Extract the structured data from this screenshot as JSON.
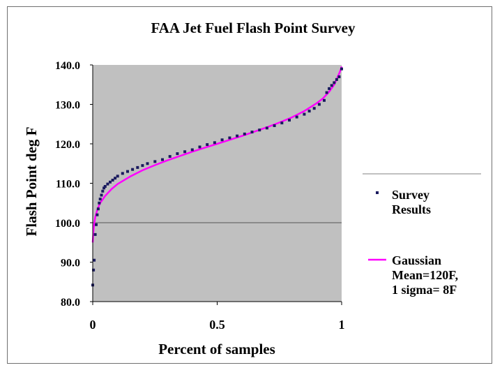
{
  "chart_data": {
    "type": "scatter",
    "title": "FAA Jet Fuel Flash Point Survey",
    "xlabel": "Percent of samples",
    "ylabel": "Flash Point deg F",
    "xlim": [
      0,
      1
    ],
    "ylim": [
      80.0,
      140.0
    ],
    "x_ticks": [
      0,
      0.5,
      1
    ],
    "x_tick_labels": [
      "0",
      "0.5",
      "1"
    ],
    "y_ticks": [
      80.0,
      90.0,
      100.0,
      110.0,
      120.0,
      130.0,
      140.0
    ],
    "y_tick_labels": [
      "80.0",
      "90.0",
      "100.0",
      "110.0",
      "120.0",
      "130.0",
      "140.0"
    ],
    "reference_line_y": 100.0,
    "grid": false,
    "plot_background": "#c0c0c0",
    "legend_position": "right",
    "series": [
      {
        "name": "Survey Results",
        "legend_lines": [
          "Survey",
          "Results"
        ],
        "type": "scatter",
        "color": "#1a1a5e",
        "x": [
          0.0,
          0.003,
          0.006,
          0.01,
          0.014,
          0.018,
          0.022,
          0.026,
          0.03,
          0.035,
          0.04,
          0.045,
          0.05,
          0.06,
          0.07,
          0.08,
          0.09,
          0.1,
          0.12,
          0.14,
          0.16,
          0.18,
          0.2,
          0.22,
          0.25,
          0.28,
          0.31,
          0.34,
          0.37,
          0.4,
          0.43,
          0.46,
          0.49,
          0.52,
          0.55,
          0.58,
          0.61,
          0.64,
          0.67,
          0.7,
          0.73,
          0.76,
          0.79,
          0.82,
          0.85,
          0.87,
          0.89,
          0.91,
          0.93,
          0.94,
          0.95,
          0.96,
          0.97,
          0.98,
          0.99,
          1.0
        ],
        "y": [
          84.2,
          88.0,
          90.5,
          97.0,
          99.5,
          102.0,
          103.5,
          105.0,
          106.0,
          107.0,
          108.0,
          108.8,
          109.2,
          109.8,
          110.3,
          110.8,
          111.3,
          111.8,
          112.5,
          113.0,
          113.5,
          114.0,
          114.5,
          115.0,
          115.5,
          116.0,
          116.8,
          117.5,
          118.0,
          118.5,
          119.2,
          119.8,
          120.3,
          121.0,
          121.5,
          122.0,
          122.5,
          123.0,
          123.5,
          124.0,
          124.6,
          125.3,
          126.0,
          126.8,
          127.5,
          128.3,
          129.0,
          130.0,
          131.0,
          133.0,
          134.0,
          134.8,
          135.5,
          136.3,
          137.0,
          139.0
        ]
      },
      {
        "name": "Gaussian Mean=120F, 1 sigma= 8F",
        "legend_lines": [
          "Gaussian",
          "Mean=120F,",
          "1 sigma= 8F"
        ],
        "type": "line",
        "color": "#ff00ff",
        "x": [
          0.0,
          0.002,
          0.005,
          0.01,
          0.02,
          0.03,
          0.05,
          0.075,
          0.1,
          0.15,
          0.2,
          0.25,
          0.3,
          0.35,
          0.4,
          0.45,
          0.5,
          0.55,
          0.6,
          0.65,
          0.7,
          0.75,
          0.8,
          0.85,
          0.9,
          0.925,
          0.95,
          0.97,
          0.98,
          0.99,
          0.995,
          0.998,
          1.0
        ],
        "y": [
          95.0,
          97.0,
          99.4,
          101.4,
          103.6,
          105.0,
          106.8,
          108.5,
          109.8,
          111.7,
          113.3,
          114.6,
          115.8,
          116.9,
          118.0,
          119.0,
          120.0,
          121.0,
          122.0,
          123.1,
          124.2,
          125.4,
          126.7,
          128.3,
          130.3,
          131.5,
          133.2,
          135.0,
          136.4,
          137.8,
          138.6,
          139.2,
          139.6
        ]
      }
    ]
  }
}
